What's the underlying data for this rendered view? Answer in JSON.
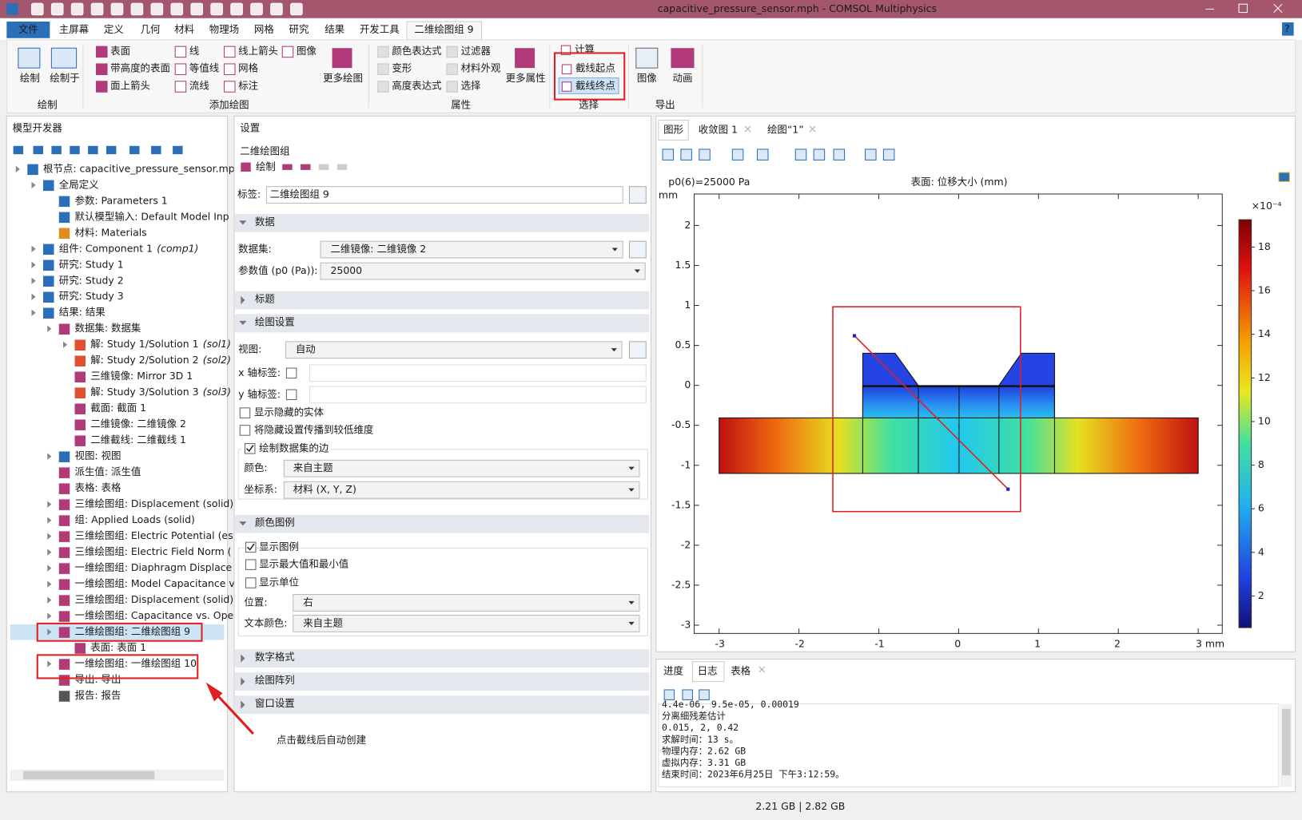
{
  "title_bar": {
    "title": "capacitive_pressure_sensor.mph - COMSOL Multiphysics",
    "help": "?"
  },
  "menu": [
    "文件",
    "主屏幕",
    "定义",
    "几何",
    "材料",
    "物理场",
    "网格",
    "研究",
    "结果",
    "开发工具",
    "二维绘图组 9"
  ],
  "ribbon": {
    "plot": {
      "buttons": [
        "绘制",
        "绘制于"
      ],
      "label": "绘制"
    },
    "add_plot": {
      "items": [
        "表面",
        "带高度的表面",
        "面上箭头",
        "线",
        "等值线",
        "流线",
        "线上箭头",
        "网格",
        "标注",
        "图像"
      ],
      "more": "更多绘图",
      "label": "添加绘图"
    },
    "attributes": {
      "items": [
        "颜色表达式",
        "变形",
        "高度表达式",
        "过滤器",
        "材料外观",
        "选择"
      ],
      "more": "更多属性",
      "label": "属性"
    },
    "selection": {
      "items": [
        "计算",
        "截线起点",
        "截线终点"
      ],
      "label": "选择"
    },
    "export": {
      "items": [
        "图像",
        "动画"
      ],
      "label": "导出"
    }
  },
  "model_builder": {
    "title": "模型开发器",
    "tree": [
      {
        "label": "根节点: capacitive_pressure_sensor.mph"
      },
      {
        "label": "全局定义"
      },
      {
        "label": "参数: Parameters 1"
      },
      {
        "label": "默认模型输入: Default Model Inp"
      },
      {
        "label": "材料: Materials"
      },
      {
        "label": "组件: Component 1",
        "tag": "(comp1)"
      },
      {
        "label": "研究: Study 1"
      },
      {
        "label": "研究: Study 2"
      },
      {
        "label": "研究: Study 3"
      },
      {
        "label": "结果: 结果"
      },
      {
        "label": "数据集: 数据集"
      },
      {
        "label": "解: Study 1/Solution 1",
        "tag": "(sol1)"
      },
      {
        "label": "解: Study 2/Solution 2",
        "tag": "(sol2)"
      },
      {
        "label": "三维镜像: Mirror 3D 1"
      },
      {
        "label": "解: Study 3/Solution 3",
        "tag": "(sol3)"
      },
      {
        "label": "截面: 截面 1"
      },
      {
        "label": "二维镜像: 二维镜像 2"
      },
      {
        "label": "二维截线: 二维截线 1"
      },
      {
        "label": "视图: 视图"
      },
      {
        "label": "派生值: 派生值"
      },
      {
        "label": "表格: 表格"
      },
      {
        "label": "三维绘图组: Displacement (solid)"
      },
      {
        "label": "组: Applied Loads (solid)"
      },
      {
        "label": "三维绘图组: Electric Potential (es)"
      },
      {
        "label": "三维绘图组: Electric Field Norm ("
      },
      {
        "label": "一维绘图组: Diaphragm Displace"
      },
      {
        "label": "一维绘图组: Model Capacitance v"
      },
      {
        "label": "三维绘图组: Displacement (solid)"
      },
      {
        "label": "一维绘图组: Capacitance vs. Ope"
      },
      {
        "label": "二维绘图组: 二维绘图组 9"
      },
      {
        "label": "表面: 表面 1"
      },
      {
        "label": "一维绘图组: 一维绘图组 10"
      },
      {
        "label": "导出: 导出"
      },
      {
        "label": "报告: 报告"
      }
    ]
  },
  "settings": {
    "title": "设置",
    "subtitle": "二维绘图组",
    "plot_button": "绘制",
    "label_field": {
      "label": "标签:",
      "value": "二维绘图组 9"
    },
    "sections": [
      "数据",
      "标题",
      "绘图设置",
      "颜色图例",
      "数字格式",
      "绘图阵列",
      "窗口设置"
    ],
    "data": {
      "dataset_label": "数据集:",
      "dataset": "二维镜像: 二维镜像 2",
      "param_label": "参数值 (p0 (Pa)):",
      "param": "25000"
    },
    "plot_settings": {
      "view_label": "视图:",
      "view": "自动",
      "x_label": "x 轴标签:",
      "y_label": "y 轴标签:",
      "show_hidden": "显示隐藏的实体",
      "propagate": "将隐藏设置传播到较低维度",
      "draw_edges": "绘制数据集的边",
      "color_label": "颜色:",
      "color": "来自主题",
      "coord_label": "坐标系:",
      "coord": "材料  (X, Y, Z)"
    },
    "legend": {
      "show_legend": "显示图例",
      "show_minmax": "显示最大值和最小值",
      "show_units": "显示单位",
      "position_label": "位置:",
      "position": "右",
      "text_color_label": "文本颜色:",
      "text_color": "来自主题"
    }
  },
  "graphics": {
    "tabs": [
      "图形",
      "收敛图 1",
      "绘图“1”"
    ],
    "header_left": "p0(6)=25000 Pa",
    "header_center": "表面: 位移大小 (mm)",
    "y_unit": "mm",
    "xticks": [
      "-3",
      "-2",
      "-1",
      "0",
      "1",
      "2",
      "3 mm"
    ],
    "yticks": [
      "2",
      "1.5",
      "1",
      "0.5",
      "0",
      "-0.5",
      "-1",
      "-1.5",
      "-2",
      "-2.5",
      "-3"
    ],
    "colorbar_exp": "×10⁻⁴",
    "colorbar_ticks": [
      "18",
      "16",
      "14",
      "12",
      "10",
      "8",
      "6",
      "4",
      "2"
    ]
  },
  "log": {
    "tabs": [
      "进度",
      "日志",
      "表格"
    ],
    "lines": [
      "4.4e-06, 9.5e-05, 0.00019",
      "分离细残差估计",
      "0.015, 2, 0.42",
      "求解时间：13 s。",
      "物理内存：2.62 GB",
      "虚拟内存：3.31 GB",
      "结束时间：2023年6月25日 下午3:12:59。"
    ]
  },
  "status": "2.21 GB | 2.82 GB",
  "annotation": "点击截线后自动创建"
}
